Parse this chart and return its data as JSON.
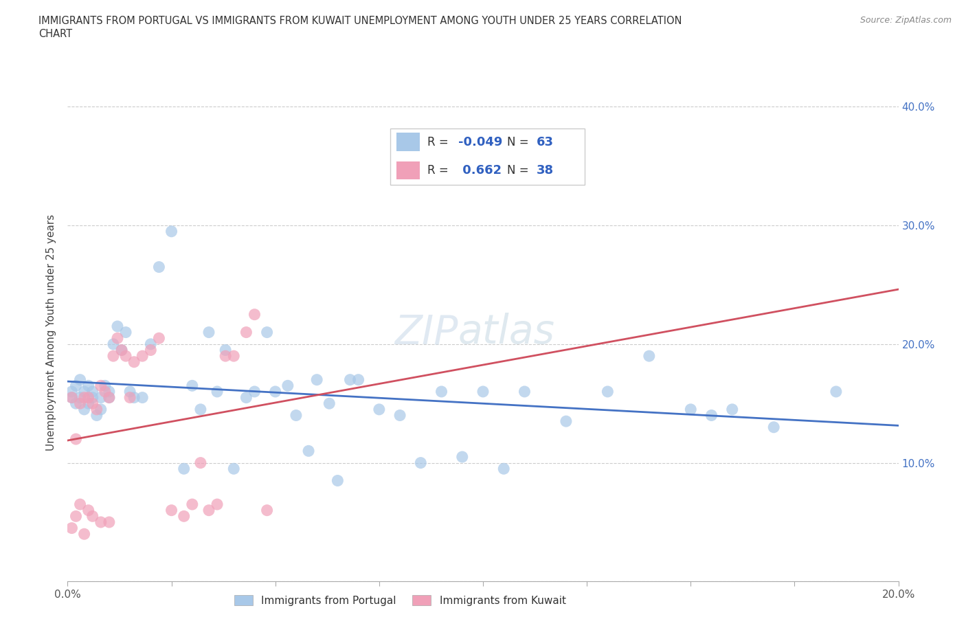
{
  "title_line1": "IMMIGRANTS FROM PORTUGAL VS IMMIGRANTS FROM KUWAIT UNEMPLOYMENT AMONG YOUTH UNDER 25 YEARS CORRELATION",
  "title_line2": "CHART",
  "source": "Source: ZipAtlas.com",
  "ylabel": "Unemployment Among Youth under 25 years",
  "xlim": [
    0.0,
    0.2
  ],
  "ylim": [
    0.0,
    0.42
  ],
  "x_ticks": [
    0.0,
    0.025,
    0.05,
    0.075,
    0.1,
    0.125,
    0.15,
    0.175,
    0.2
  ],
  "y_ticks": [
    0.0,
    0.1,
    0.2,
    0.3,
    0.4
  ],
  "y_tick_labels_right": [
    "",
    "10.0%",
    "20.0%",
    "30.0%",
    "40.0%"
  ],
  "R_portugal": -0.049,
  "N_portugal": 63,
  "R_kuwait": 0.662,
  "N_kuwait": 38,
  "color_portugal": "#a8c8e8",
  "color_kuwait": "#f0a0b8",
  "line_color_portugal": "#4472c4",
  "line_color_kuwait": "#d05060",
  "watermark_zip": "ZIP",
  "watermark_atlas": "atlas",
  "portugal_x": [
    0.001,
    0.001,
    0.002,
    0.002,
    0.003,
    0.003,
    0.004,
    0.004,
    0.005,
    0.005,
    0.006,
    0.006,
    0.007,
    0.008,
    0.008,
    0.009,
    0.01,
    0.01,
    0.011,
    0.012,
    0.013,
    0.014,
    0.015,
    0.016,
    0.018,
    0.02,
    0.022,
    0.025,
    0.028,
    0.03,
    0.032,
    0.034,
    0.036,
    0.038,
    0.04,
    0.043,
    0.045,
    0.048,
    0.05,
    0.053,
    0.055,
    0.058,
    0.06,
    0.063,
    0.065,
    0.068,
    0.07,
    0.075,
    0.08,
    0.085,
    0.09,
    0.095,
    0.1,
    0.105,
    0.11,
    0.12,
    0.13,
    0.14,
    0.15,
    0.155,
    0.16,
    0.17,
    0.185
  ],
  "portugal_y": [
    0.155,
    0.16,
    0.15,
    0.165,
    0.155,
    0.17,
    0.145,
    0.16,
    0.15,
    0.165,
    0.155,
    0.16,
    0.14,
    0.155,
    0.145,
    0.165,
    0.155,
    0.16,
    0.2,
    0.215,
    0.195,
    0.21,
    0.16,
    0.155,
    0.155,
    0.2,
    0.265,
    0.295,
    0.095,
    0.165,
    0.145,
    0.21,
    0.16,
    0.195,
    0.095,
    0.155,
    0.16,
    0.21,
    0.16,
    0.165,
    0.14,
    0.11,
    0.17,
    0.15,
    0.085,
    0.17,
    0.17,
    0.145,
    0.14,
    0.1,
    0.16,
    0.105,
    0.16,
    0.095,
    0.16,
    0.135,
    0.16,
    0.19,
    0.145,
    0.14,
    0.145,
    0.13,
    0.16
  ],
  "kuwait_x": [
    0.001,
    0.001,
    0.002,
    0.002,
    0.003,
    0.003,
    0.004,
    0.004,
    0.005,
    0.005,
    0.006,
    0.006,
    0.007,
    0.008,
    0.008,
    0.009,
    0.01,
    0.01,
    0.011,
    0.012,
    0.013,
    0.014,
    0.015,
    0.016,
    0.018,
    0.02,
    0.022,
    0.025,
    0.028,
    0.03,
    0.032,
    0.034,
    0.036,
    0.038,
    0.04,
    0.043,
    0.045,
    0.048
  ],
  "kuwait_y": [
    0.155,
    0.045,
    0.12,
    0.055,
    0.15,
    0.065,
    0.155,
    0.04,
    0.155,
    0.06,
    0.15,
    0.055,
    0.145,
    0.165,
    0.05,
    0.16,
    0.155,
    0.05,
    0.19,
    0.205,
    0.195,
    0.19,
    0.155,
    0.185,
    0.19,
    0.195,
    0.205,
    0.06,
    0.055,
    0.065,
    0.1,
    0.06,
    0.065,
    0.19,
    0.19,
    0.21,
    0.225,
    0.06
  ]
}
